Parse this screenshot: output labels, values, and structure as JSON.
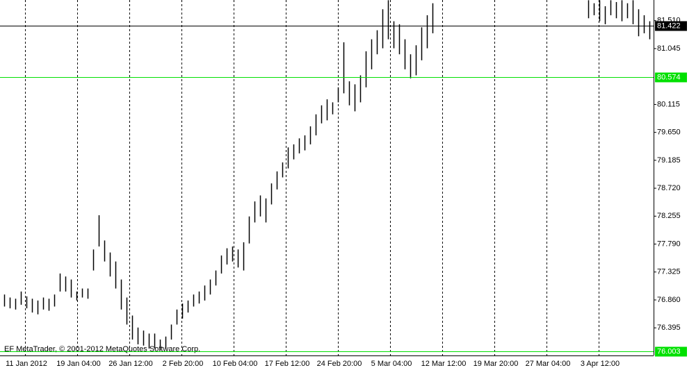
{
  "chart_data": {
    "type": "ohlc",
    "footer": "EF MetaTrader, © 2001-2012 MetaQuotes Software Corp.",
    "x_labels": [
      "11 Jan 2012",
      "19 Jan 04:00",
      "26 Jan 12:00",
      "2 Feb 20:00",
      "10 Feb 04:00",
      "17 Feb 12:00",
      "24 Feb 20:00",
      "5 Mar 04:00",
      "12 Mar 12:00",
      "19 Mar 20:00",
      "27 Mar 04:00",
      "3 Apr 12:00"
    ],
    "color": "#000000",
    "high": [
      76.95,
      76.9,
      76.88,
      77.0,
      76.92,
      76.88,
      76.85,
      76.9,
      76.88,
      76.95,
      77.3,
      77.25,
      77.2,
      77.0,
      77.05,
      77.05,
      77.7,
      78.27,
      77.85,
      77.65,
      77.5,
      77.2,
      76.9,
      76.6,
      76.4,
      76.35,
      76.3,
      76.3,
      76.2,
      76.25,
      76.45,
      76.7,
      76.8,
      76.85,
      76.95,
      77.0,
      77.1,
      77.2,
      77.35,
      77.6,
      77.72,
      77.75,
      77.7,
      77.82,
      78.25,
      78.5,
      78.6,
      78.55,
      78.8,
      79.0,
      79.15,
      79.4,
      79.45,
      79.55,
      79.6,
      79.75,
      79.95,
      80.1,
      80.2,
      80.15,
      80.4,
      81.15,
      80.5,
      80.45,
      80.6,
      81.0,
      81.2,
      81.35,
      81.7,
      81.85,
      81.5,
      81.45,
      81.2,
      80.95,
      81.1,
      81.4,
      81.6,
      81.8,
      null,
      null,
      null,
      null,
      null,
      null,
      null,
      null,
      null,
      null,
      null,
      null,
      null,
      null,
      null,
      null,
      null,
      null,
      null,
      null,
      null,
      null,
      null,
      null,
      null,
      null,
      null,
      81.85,
      81.8,
      81.85,
      81.75,
      81.85,
      81.82,
      81.85,
      81.8,
      81.85,
      81.7,
      81.6,
      81.5
    ],
    "low": [
      76.75,
      76.72,
      76.7,
      76.78,
      76.72,
      76.65,
      76.62,
      76.7,
      76.68,
      76.75,
      77.0,
      77.0,
      76.9,
      76.85,
      76.9,
      76.88,
      77.35,
      77.75,
      77.5,
      77.25,
      77.05,
      76.7,
      76.45,
      76.2,
      76.12,
      76.1,
      76.05,
      76.05,
      76.02,
      76.05,
      76.2,
      76.45,
      76.55,
      76.65,
      76.75,
      76.8,
      76.85,
      76.95,
      77.1,
      77.3,
      77.45,
      77.5,
      77.4,
      77.35,
      77.8,
      78.15,
      78.25,
      78.15,
      78.45,
      78.7,
      78.9,
      79.05,
      79.2,
      79.3,
      79.35,
      79.45,
      79.6,
      79.8,
      79.85,
      79.95,
      80.15,
      80.3,
      80.1,
      80.0,
      80.15,
      80.4,
      80.7,
      80.95,
      81.05,
      81.2,
      81.05,
      80.95,
      80.7,
      80.55,
      80.6,
      80.85,
      81.05,
      81.3,
      null,
      null,
      null,
      null,
      null,
      null,
      null,
      null,
      null,
      null,
      null,
      null,
      null,
      null,
      null,
      null,
      null,
      null,
      null,
      null,
      null,
      null,
      null,
      null,
      null,
      null,
      null,
      81.55,
      81.6,
      81.5,
      81.45,
      81.6,
      81.55,
      81.5,
      81.55,
      81.45,
      81.25,
      81.3,
      81.2
    ],
    "ylim": [
      75.935,
      81.854
    ],
    "yticks": [
      {
        "value": 81.51,
        "label": "81.510"
      },
      81.045,
      80.115,
      {
        "value": 79.65,
        "label": "79.650"
      },
      79.185,
      {
        "value": 78.72,
        "label": "78.720"
      },
      78.255,
      {
        "value": 77.79,
        "label": "77.790"
      },
      77.325,
      {
        "value": 76.86,
        "label": "76.860"
      },
      76.395
    ],
    "levels": [
      {
        "value": 81.422,
        "color": "#000000"
      },
      {
        "value": 80.574,
        "color": "#00e000"
      },
      {
        "value": 76.003,
        "color": "#00e000"
      }
    ]
  }
}
